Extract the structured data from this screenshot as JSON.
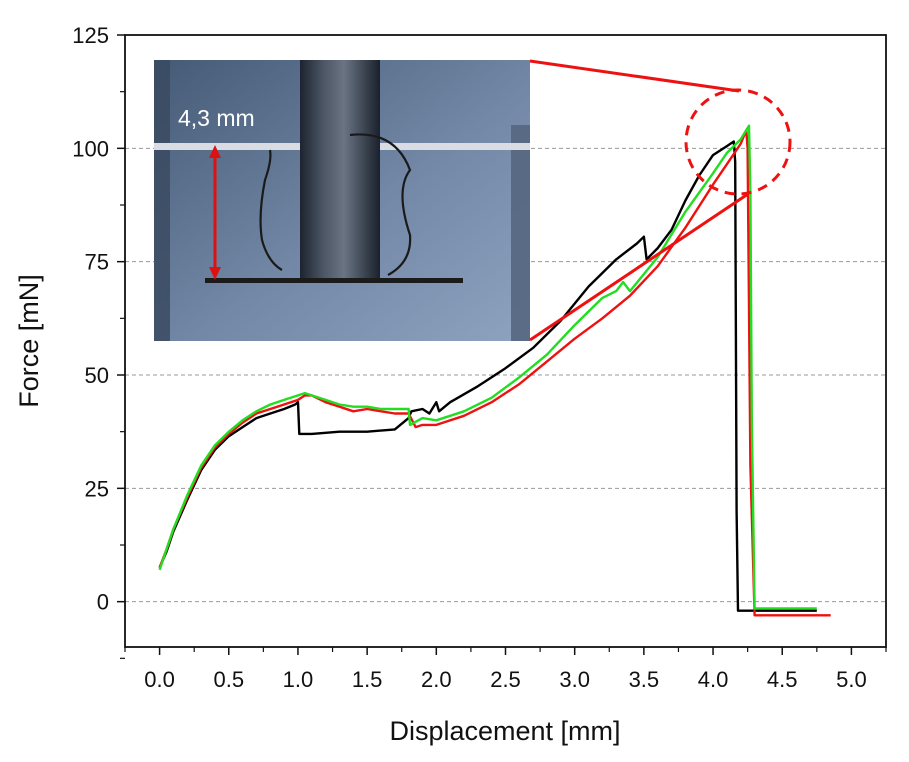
{
  "chart_data": {
    "type": "line",
    "xlabel": "Displacement [mm]",
    "ylabel": "Force [mN]",
    "xlim": [
      -0.25,
      5.25
    ],
    "ylim": [
      -10,
      125
    ],
    "xticks": [
      "0.0",
      "0.5",
      "1.0",
      "1.5",
      "2.0",
      "2.5",
      "3.0",
      "3.5",
      "4.0",
      "4.5",
      "5.0"
    ],
    "xtick_values": [
      0,
      0.5,
      1,
      1.5,
      2,
      2.5,
      3,
      3.5,
      4,
      4.5,
      5
    ],
    "yticks": [
      "0",
      "25",
      "50",
      "75",
      "100",
      "125"
    ],
    "ytick_values": [
      0,
      25,
      50,
      75,
      100,
      125
    ],
    "grid": "horizontal dashed at y ticks",
    "legend": "none",
    "series": [
      {
        "color": "#000000",
        "x": [
          0,
          0.05,
          0.1,
          0.2,
          0.3,
          0.4,
          0.5,
          0.6,
          0.7,
          0.8,
          0.9,
          0.98,
          1.0,
          1.01,
          1.1,
          1.3,
          1.5,
          1.7,
          1.8,
          1.82,
          1.9,
          1.95,
          2.0,
          2.02,
          2.1,
          2.3,
          2.5,
          2.7,
          2.9,
          3.1,
          3.3,
          3.45,
          3.5,
          3.52,
          3.6,
          3.7,
          3.8,
          3.9,
          4.0,
          4.1,
          4.15,
          4.16,
          4.17,
          4.18,
          4.25,
          4.4,
          4.6,
          4.75
        ],
        "values": [
          7.5,
          11,
          15.5,
          22.5,
          29,
          33.5,
          36.5,
          38.5,
          40.5,
          41.5,
          42.5,
          43.5,
          44,
          37,
          37,
          37.5,
          37.5,
          38,
          40.5,
          42,
          42.5,
          41.5,
          44,
          42,
          44,
          47.5,
          51.5,
          56,
          62,
          69.5,
          75.5,
          79,
          80.5,
          75.5,
          78,
          82,
          88.5,
          94,
          98.5,
          100.5,
          101.5,
          97,
          20,
          -2,
          -2,
          -2,
          -2,
          -2
        ]
      },
      {
        "color": "#ee1111",
        "x": [
          0,
          0.05,
          0.1,
          0.2,
          0.3,
          0.4,
          0.5,
          0.6,
          0.7,
          0.8,
          0.9,
          1.0,
          1.05,
          1.1,
          1.2,
          1.3,
          1.4,
          1.5,
          1.6,
          1.7,
          1.8,
          1.85,
          1.9,
          2.0,
          2.2,
          2.4,
          2.6,
          2.8,
          3.0,
          3.2,
          3.4,
          3.6,
          3.8,
          4.0,
          4.1,
          4.2,
          4.24,
          4.25,
          4.27,
          4.3,
          4.5,
          4.7,
          4.85
        ],
        "values": [
          7.5,
          11.5,
          16,
          23,
          29.5,
          34,
          37,
          39.5,
          41.5,
          42.5,
          43.5,
          44.5,
          45.5,
          45.5,
          44,
          43,
          42,
          42.5,
          42,
          41.5,
          41.5,
          38.5,
          39,
          39,
          41,
          44,
          48,
          53,
          58,
          62.5,
          67.5,
          74,
          82.5,
          92,
          96.5,
          101,
          104,
          100,
          30,
          -3,
          -3,
          -3,
          -3
        ]
      },
      {
        "color": "#22dd22",
        "x": [
          0,
          0.05,
          0.1,
          0.2,
          0.3,
          0.4,
          0.5,
          0.6,
          0.7,
          0.8,
          0.9,
          1.0,
          1.05,
          1.1,
          1.2,
          1.3,
          1.4,
          1.5,
          1.6,
          1.7,
          1.8,
          1.81,
          1.9,
          2.0,
          2.2,
          2.4,
          2.6,
          2.8,
          3.0,
          3.2,
          3.3,
          3.35,
          3.4,
          3.6,
          3.8,
          4.0,
          4.1,
          4.2,
          4.26,
          4.27,
          4.28,
          4.3,
          4.5,
          4.75
        ],
        "values": [
          7,
          11.5,
          16,
          23.5,
          30,
          34.5,
          37.5,
          40,
          42,
          43.5,
          44.5,
          45.5,
          46,
          45.5,
          44.5,
          43.5,
          43,
          43,
          42.5,
          42.5,
          42.5,
          39,
          40.5,
          40,
          42,
          45,
          49.5,
          54.5,
          61,
          67,
          68.5,
          70.5,
          68.5,
          76,
          86,
          94.5,
          99,
          102,
          105,
          90,
          40,
          -1.5,
          -1.5,
          -1.5
        ]
      }
    ],
    "annotations": [
      {
        "text": "4,3 mm",
        "type": "inset photo with red double arrow"
      },
      {
        "type": "dashed red circle",
        "center": [
          4.23,
          102.5
        ]
      }
    ]
  },
  "inset": {
    "label": "4,3 mm",
    "arrow_color": "#dd1111"
  },
  "colors": {
    "zoom_lines": "#ee1111",
    "grid": "#9a9a9a",
    "axis": "#111111"
  }
}
